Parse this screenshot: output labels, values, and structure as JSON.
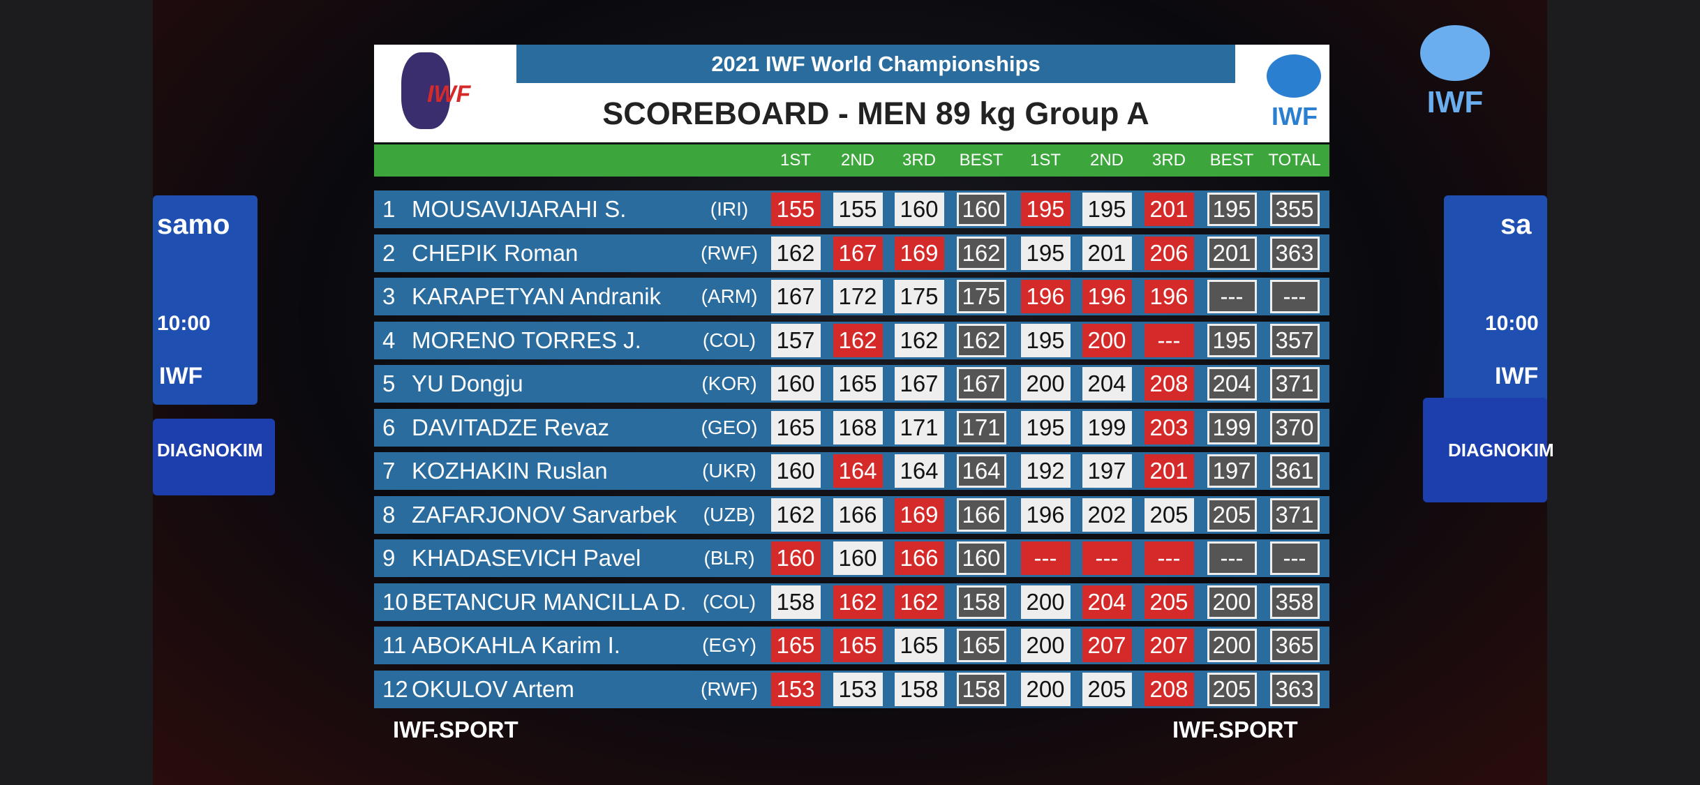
{
  "header": {
    "event": "2021 IWF World Championships",
    "title": "SCOREBOARD - MEN 89 kg Group A",
    "logo_left": "IWF",
    "logo_right": "IWF"
  },
  "corner_logo": "IWF",
  "background": {
    "left_banner": [
      "samo",
      "10:00",
      "IWF",
      "DIAGNOKIM"
    ],
    "right_banner": [
      "sa",
      "10:00",
      "IWF",
      "DIAGNOKIM"
    ]
  },
  "columns": [
    "1ST",
    "2ND",
    "3RD",
    "BEST",
    "1ST",
    "2ND",
    "3RD",
    "BEST",
    "TOTAL"
  ],
  "rows": [
    {
      "rank": "1",
      "name": "MOUSAVIJARAHI S.",
      "country": "(IRI)",
      "snatch": [
        {
          "text": "155",
          "fail": true
        },
        {
          "text": "155",
          "fail": false
        },
        {
          "text": "160",
          "fail": false
        }
      ],
      "snatch_best": "160",
      "cj": [
        {
          "text": "195",
          "fail": true
        },
        {
          "text": "195",
          "fail": false
        },
        {
          "text": "201",
          "fail": true
        }
      ],
      "cj_best": "195",
      "total": "355"
    },
    {
      "rank": "2",
      "name": "CHEPIK Roman",
      "country": "(RWF)",
      "snatch": [
        {
          "text": "162",
          "fail": false
        },
        {
          "text": "167",
          "fail": true
        },
        {
          "text": "169",
          "fail": true
        }
      ],
      "snatch_best": "162",
      "cj": [
        {
          "text": "195",
          "fail": false
        },
        {
          "text": "201",
          "fail": false
        },
        {
          "text": "206",
          "fail": true
        }
      ],
      "cj_best": "201",
      "total": "363"
    },
    {
      "rank": "3",
      "name": "KARAPETYAN Andranik",
      "country": "(ARM)",
      "snatch": [
        {
          "text": "167",
          "fail": false
        },
        {
          "text": "172",
          "fail": false
        },
        {
          "text": "175",
          "fail": false
        }
      ],
      "snatch_best": "175",
      "cj": [
        {
          "text": "196",
          "fail": true
        },
        {
          "text": "196",
          "fail": true
        },
        {
          "text": "196",
          "fail": true
        }
      ],
      "cj_best": "---",
      "total": "---"
    },
    {
      "rank": "4",
      "name": "MORENO TORRES J.",
      "country": "(COL)",
      "snatch": [
        {
          "text": "157",
          "fail": false
        },
        {
          "text": "162",
          "fail": true
        },
        {
          "text": "162",
          "fail": false
        }
      ],
      "snatch_best": "162",
      "cj": [
        {
          "text": "195",
          "fail": false
        },
        {
          "text": "200",
          "fail": true
        },
        {
          "text": "---",
          "fail": true
        }
      ],
      "cj_best": "195",
      "total": "357"
    },
    {
      "rank": "5",
      "name": "YU Dongju",
      "country": "(KOR)",
      "snatch": [
        {
          "text": "160",
          "fail": false
        },
        {
          "text": "165",
          "fail": false
        },
        {
          "text": "167",
          "fail": false
        }
      ],
      "snatch_best": "167",
      "cj": [
        {
          "text": "200",
          "fail": false
        },
        {
          "text": "204",
          "fail": false
        },
        {
          "text": "208",
          "fail": true
        }
      ],
      "cj_best": "204",
      "total": "371"
    },
    {
      "rank": "6",
      "name": "DAVITADZE Revaz",
      "country": "(GEO)",
      "snatch": [
        {
          "text": "165",
          "fail": false
        },
        {
          "text": "168",
          "fail": false
        },
        {
          "text": "171",
          "fail": false
        }
      ],
      "snatch_best": "171",
      "cj": [
        {
          "text": "195",
          "fail": false
        },
        {
          "text": "199",
          "fail": false
        },
        {
          "text": "203",
          "fail": true
        }
      ],
      "cj_best": "199",
      "total": "370"
    },
    {
      "rank": "7",
      "name": "KOZHAKIN Ruslan",
      "country": "(UKR)",
      "snatch": [
        {
          "text": "160",
          "fail": false
        },
        {
          "text": "164",
          "fail": true
        },
        {
          "text": "164",
          "fail": false
        }
      ],
      "snatch_best": "164",
      "cj": [
        {
          "text": "192",
          "fail": false
        },
        {
          "text": "197",
          "fail": false
        },
        {
          "text": "201",
          "fail": true
        }
      ],
      "cj_best": "197",
      "total": "361"
    },
    {
      "rank": "8",
      "name": "ZAFARJONOV Sarvarbek",
      "country": "(UZB)",
      "snatch": [
        {
          "text": "162",
          "fail": false
        },
        {
          "text": "166",
          "fail": false
        },
        {
          "text": "169",
          "fail": true
        }
      ],
      "snatch_best": "166",
      "cj": [
        {
          "text": "196",
          "fail": false
        },
        {
          "text": "202",
          "fail": false
        },
        {
          "text": "205",
          "fail": false
        }
      ],
      "cj_best": "205",
      "total": "371"
    },
    {
      "rank": "9",
      "name": "KHADASEVICH Pavel",
      "country": "(BLR)",
      "snatch": [
        {
          "text": "160",
          "fail": true
        },
        {
          "text": "160",
          "fail": false
        },
        {
          "text": "166",
          "fail": true
        }
      ],
      "snatch_best": "160",
      "cj": [
        {
          "text": "---",
          "fail": true
        },
        {
          "text": "---",
          "fail": true
        },
        {
          "text": "---",
          "fail": true
        }
      ],
      "cj_best": "---",
      "total": "---"
    },
    {
      "rank": "10",
      "name": "BETANCUR MANCILLA D.",
      "country": "(COL)",
      "snatch": [
        {
          "text": "158",
          "fail": false
        },
        {
          "text": "162",
          "fail": true
        },
        {
          "text": "162",
          "fail": true
        }
      ],
      "snatch_best": "158",
      "cj": [
        {
          "text": "200",
          "fail": false
        },
        {
          "text": "204",
          "fail": true
        },
        {
          "text": "205",
          "fail": true
        }
      ],
      "cj_best": "200",
      "total": "358"
    },
    {
      "rank": "11",
      "name": "ABOKAHLA Karim I.",
      "country": "(EGY)",
      "snatch": [
        {
          "text": "165",
          "fail": true
        },
        {
          "text": "165",
          "fail": true
        },
        {
          "text": "165",
          "fail": false
        }
      ],
      "snatch_best": "165",
      "cj": [
        {
          "text": "200",
          "fail": false
        },
        {
          "text": "207",
          "fail": true
        },
        {
          "text": "207",
          "fail": true
        }
      ],
      "cj_best": "200",
      "total": "365"
    },
    {
      "rank": "12",
      "name": "OKULOV Artem",
      "country": "(RWF)",
      "snatch": [
        {
          "text": "153",
          "fail": true
        },
        {
          "text": "153",
          "fail": false
        },
        {
          "text": "158",
          "fail": false
        }
      ],
      "snatch_best": "158",
      "cj": [
        {
          "text": "200",
          "fail": false
        },
        {
          "text": "205",
          "fail": false
        },
        {
          "text": "208",
          "fail": true
        }
      ],
      "cj_best": "205",
      "total": "363"
    }
  ],
  "footer": {
    "left": "IWF.SPORT",
    "right": "IWF.SPORT"
  }
}
